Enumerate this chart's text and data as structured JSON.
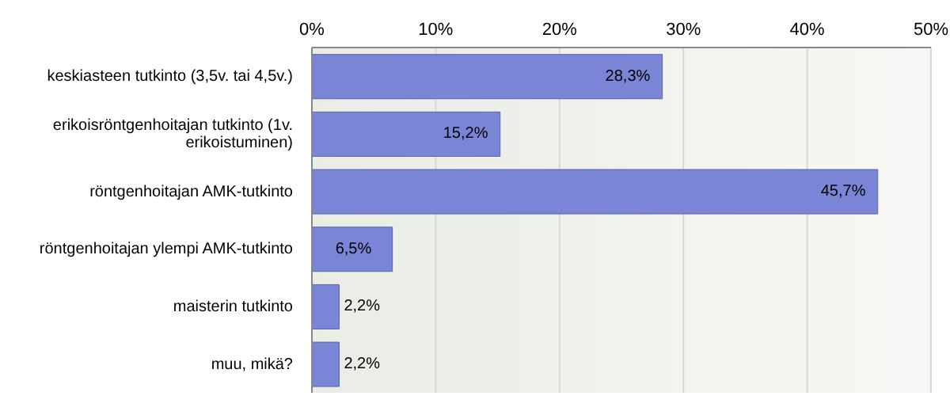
{
  "chart_data": {
    "type": "bar",
    "orientation": "horizontal",
    "categories": [
      "keskiasteen tutkinto (3,5v. tai 4,5v.)",
      "erikoisröntgenhoitajan  tutkinto (1v. erikoistuminen)",
      "röntgenhoitajan AMK-tutkinto",
      "röntgenhoitajan   ylempi AMK-tutkinto",
      "maisterin tutkinto",
      "muu,   mikä?"
    ],
    "values": [
      28.3,
      15.2,
      45.7,
      6.5,
      2.2,
      2.2
    ],
    "value_labels": [
      "28,3%",
      "15,2%",
      "45,7%",
      "6,5%",
      "2,2%",
      "2,2%"
    ],
    "color": "#7b85d6",
    "xlim": [
      0,
      50
    ],
    "xticks": [
      {
        "value": 0,
        "label": "0%"
      },
      {
        "value": 10,
        "label": "10%"
      },
      {
        "value": 20,
        "label": "20%"
      },
      {
        "value": 30,
        "label": "30%"
      },
      {
        "value": 40,
        "label": "40%"
      },
      {
        "value": 50,
        "label": "50%"
      }
    ],
    "grid": "x"
  }
}
